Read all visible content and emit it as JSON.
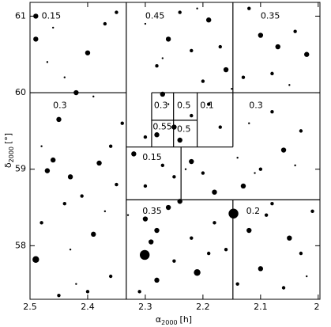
{
  "chart_data": {
    "type": "scatter",
    "x_label": {
      "symbol": "α",
      "sub": "2000",
      "unit": "[h]"
    },
    "y_label": {
      "symbol": "δ",
      "sub": "2000",
      "unit": "[°]"
    },
    "xlim": [
      2.5,
      1.997
    ],
    "ylim": [
      57.3,
      61.18
    ],
    "xticks": [
      {
        "value": 2.5,
        "label": "2.5"
      },
      2.4,
      2.3,
      2.2,
      2.1,
      2
    ],
    "yticks": [
      58,
      59,
      60,
      61
    ],
    "color": "#000000",
    "stars": {
      "x": [
        2.49,
        2.49,
        2.47,
        2.4,
        2.37,
        2.35,
        2.44,
        2.42,
        2.45,
        2.48,
        2.46,
        2.47,
        2.43,
        2.38,
        2.36,
        2.34,
        2.41,
        2.44,
        2.39,
        2.48,
        2.49,
        2.42,
        2.36,
        2.4,
        2.45,
        2.35,
        2.3,
        2.26,
        2.24,
        2.22,
        2.19,
        2.17,
        2.28,
        2.2,
        2.16,
        2.12,
        2.1,
        2.07,
        2.04,
        2.02,
        2.08,
        2.05,
        2.13,
        2.27,
        2.25,
        2.28,
        2.3,
        2.24,
        2.22,
        2.19,
        2.17,
        2.32,
        2.27,
        2.3,
        2.25,
        2.22,
        2.2,
        2.18,
        2.13,
        2.1,
        2.06,
        2.03,
        2.08,
        2.12,
        2.3,
        2.28,
        2.26,
        2.24,
        2.29,
        2.301,
        2.25,
        2.21,
        2.19,
        2.18,
        2.22,
        2.28,
        2.31,
        2.147,
        2.12,
        2.09,
        2.05,
        2.03,
        2.1,
        2.14,
        2.06,
        2.01,
        2.08,
        2.16,
        2.46,
        2.39,
        2.33,
        2.27,
        2.23,
        2.15,
        2.11,
        2.04,
        2.43,
        2.37,
        2.21,
        2.14,
        2.02,
        2.26
      ],
      "y": [
        61.0,
        60.7,
        60.4,
        60.52,
        60.9,
        61.05,
        60.2,
        60.0,
        59.65,
        59.3,
        59.12,
        58.98,
        58.9,
        59.08,
        59.3,
        59.6,
        58.65,
        58.55,
        58.15,
        58.3,
        57.82,
        57.5,
        57.6,
        57.4,
        57.35,
        58.8,
        60.9,
        60.7,
        61.05,
        60.55,
        60.95,
        60.6,
        60.35,
        60.15,
        60.3,
        61.1,
        60.75,
        60.6,
        60.8,
        60.5,
        60.25,
        60.1,
        60.2,
        59.98,
        59.55,
        59.45,
        59.42,
        59.38,
        59.7,
        59.85,
        59.55,
        59.2,
        59.05,
        58.78,
        58.9,
        59.1,
        58.95,
        58.7,
        58.78,
        59.0,
        59.25,
        59.5,
        59.75,
        59.6,
        58.35,
        58.2,
        58.5,
        58.58,
        58.05,
        57.88,
        57.8,
        57.65,
        57.9,
        58.3,
        58.1,
        57.55,
        57.4,
        58.42,
        58.2,
        58.4,
        58.1,
        57.9,
        57.7,
        57.5,
        57.45,
        58.45,
        58.55,
        57.95,
        60.85,
        59.95,
        58.4,
        60.45,
        59.0,
        60.05,
        58.95,
        59.05,
        57.95,
        58.45,
        61.1,
        59.15,
        57.6,
        59.85
      ],
      "size": [
        3,
        3,
        1,
        3,
        2,
        2,
        1,
        3,
        3,
        1,
        3,
        3,
        3,
        3,
        2,
        2,
        2,
        2,
        3,
        2,
        4,
        1,
        2,
        2,
        2,
        2,
        1,
        3,
        2,
        2,
        3,
        2,
        2,
        2,
        3,
        2,
        3,
        3,
        2,
        3,
        2,
        1,
        2,
        3,
        3,
        3,
        2,
        3,
        2,
        2,
        2,
        3,
        2,
        2,
        2,
        3,
        2,
        3,
        3,
        2,
        3,
        2,
        2,
        1,
        3,
        3,
        3,
        3,
        3,
        6,
        2,
        4,
        2,
        2,
        2,
        3,
        2,
        6,
        3,
        2,
        3,
        2,
        3,
        2,
        2,
        2,
        2,
        2,
        1,
        1,
        1,
        1,
        1,
        1,
        1,
        1,
        1,
        1,
        1,
        1,
        1,
        1
      ]
    },
    "boundaries": [
      [
        2.333,
        61.18,
        2.333,
        57.3
      ],
      [
        2.148,
        61.18,
        2.148,
        59.29
      ],
      [
        2.148,
        58.6,
        2.148,
        57.3
      ],
      [
        2.5,
        60,
        2.333,
        60
      ],
      [
        2.148,
        60,
        1.997,
        60
      ],
      [
        2.289,
        60,
        2.148,
        60
      ],
      [
        2.289,
        60,
        2.289,
        59.29
      ],
      [
        2.251,
        60,
        2.251,
        59.29
      ],
      [
        2.21,
        60,
        2.21,
        59.29
      ],
      [
        2.289,
        59.64,
        2.21,
        59.64
      ],
      [
        2.333,
        59.29,
        2.148,
        59.29
      ],
      [
        2.238,
        59.29,
        2.238,
        58.6
      ],
      [
        2.333,
        58.6,
        1.997,
        58.6
      ]
    ],
    "regions": [
      {
        "label": "0.15",
        "x": 2.48,
        "y": 61.0
      },
      {
        "label": "0.45",
        "x": 2.3,
        "y": 61.0
      },
      {
        "label": "0.35",
        "x": 2.1,
        "y": 61.0
      },
      {
        "label": "0.3",
        "x": 2.46,
        "y": 59.83
      },
      {
        "label": "0.3",
        "x": 2.285,
        "y": 59.83
      },
      {
        "label": "0.5",
        "x": 2.245,
        "y": 59.83
      },
      {
        "label": "0.1",
        "x": 2.205,
        "y": 59.83
      },
      {
        "label": "0.3",
        "x": 2.12,
        "y": 59.83
      },
      {
        "label": "0.55",
        "x": 2.287,
        "y": 59.55
      },
      {
        "label": "0.5",
        "x": 2.245,
        "y": 59.52
      },
      {
        "label": "0.15",
        "x": 2.305,
        "y": 59.15
      },
      {
        "label": "0.35",
        "x": 2.305,
        "y": 58.45
      },
      {
        "label": "0.2",
        "x": 2.125,
        "y": 58.45
      }
    ]
  }
}
